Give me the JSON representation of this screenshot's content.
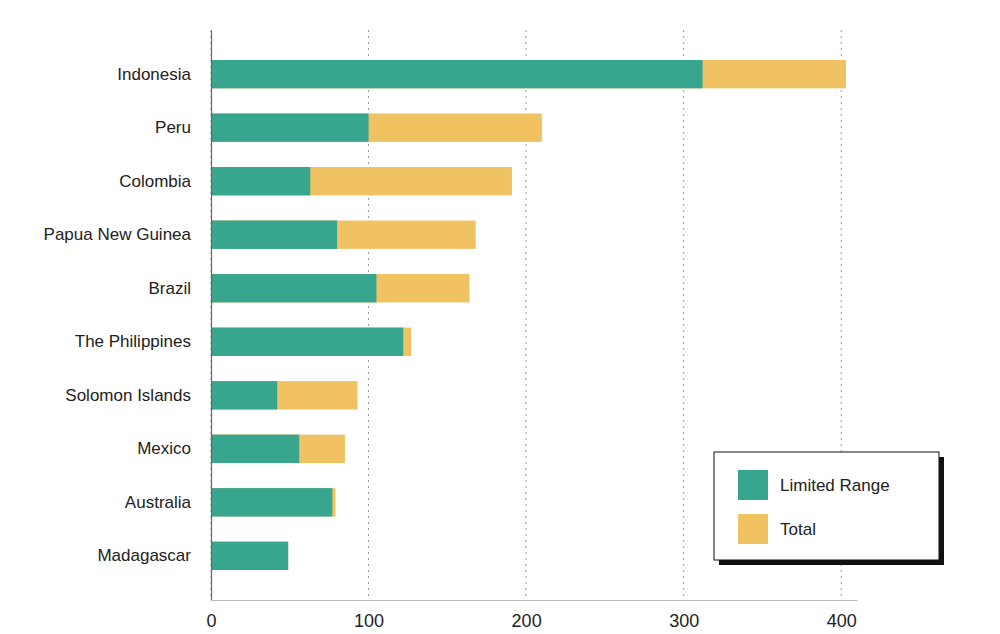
{
  "chart_data": {
    "type": "bar",
    "orientation": "horizontal",
    "stacked": false,
    "categories": [
      "Indonesia",
      "Peru",
      "Colombia",
      "Papua New Guinea",
      "Brazil",
      "The Philippines",
      "Solomon Islands",
      "Mexico",
      "Australia",
      "Madagascar"
    ],
    "series": [
      {
        "name": "Limited Range",
        "color": "#38a68f",
        "values": [
          312,
          100,
          63,
          80,
          105,
          122,
          42,
          56,
          77,
          49
        ]
      },
      {
        "name": "Total",
        "color": "#f0c262",
        "values": [
          403,
          210,
          191,
          168,
          164,
          127,
          93,
          85,
          79,
          49
        ]
      }
    ],
    "xlim": [
      0,
      410
    ],
    "xticks": [
      0,
      100,
      200,
      300,
      400
    ],
    "grid": true,
    "legend": "lower right"
  }
}
